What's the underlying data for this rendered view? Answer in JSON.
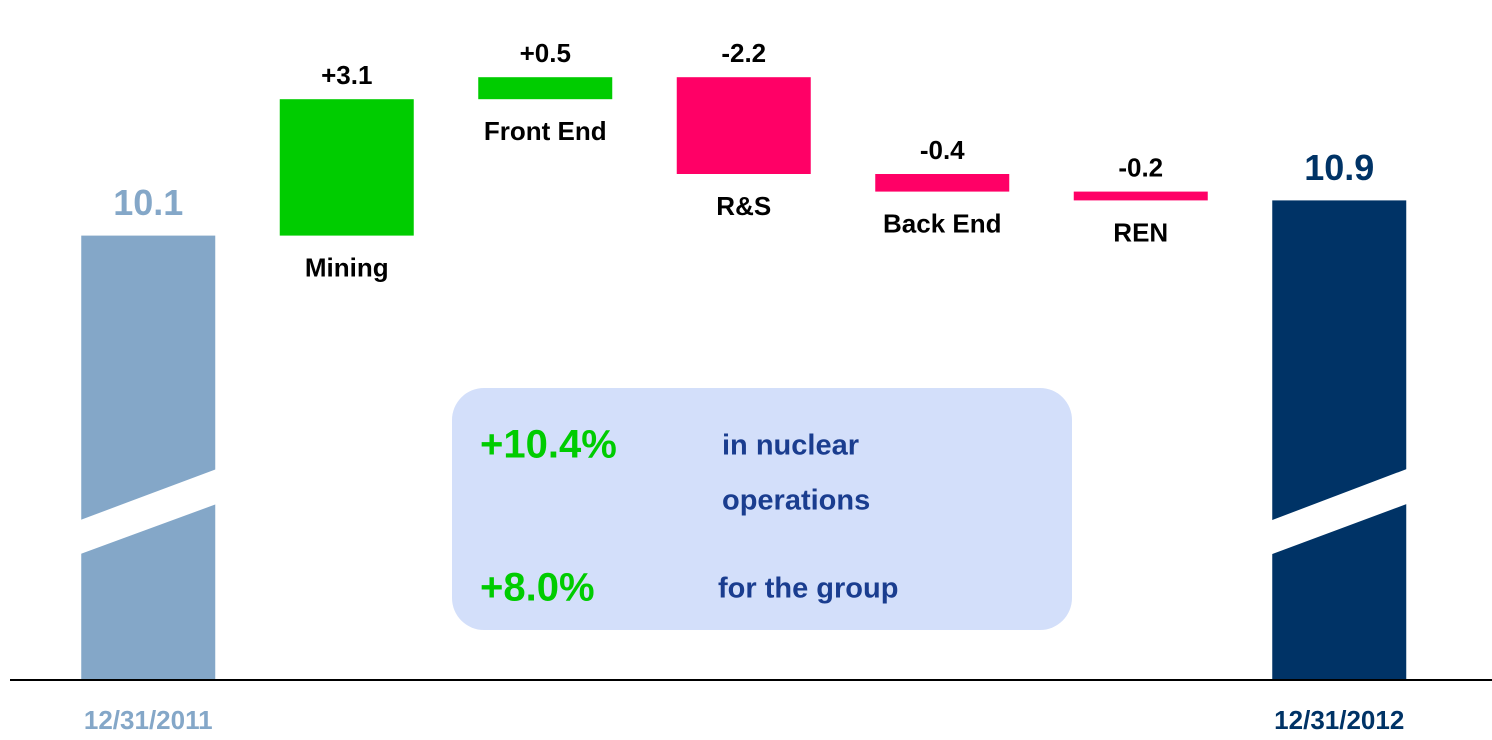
{
  "chart_data": {
    "type": "waterfall",
    "categories": [
      "12/31/2011",
      "Mining",
      "Front End",
      "R&S",
      "Back End",
      "REN",
      "12/31/2012"
    ],
    "values": [
      10.1,
      3.1,
      0.5,
      -2.2,
      -0.4,
      -0.2,
      10.9
    ],
    "value_labels": [
      "10.1",
      "+3.1",
      "+0.5",
      "-2.2",
      "-0.4",
      "-0.2",
      "10.9"
    ],
    "colors": {
      "start": "#84a7c8",
      "increase": "#00cc00",
      "decrease": "#ff0066",
      "end": "#003366"
    },
    "ylim": [
      0,
      15
    ],
    "annotations": [
      {
        "value": "+10.4%",
        "text": [
          "in nuclear",
          "operations"
        ]
      },
      {
        "value": "+8.0%",
        "text": [
          "for the group"
        ]
      }
    ]
  }
}
